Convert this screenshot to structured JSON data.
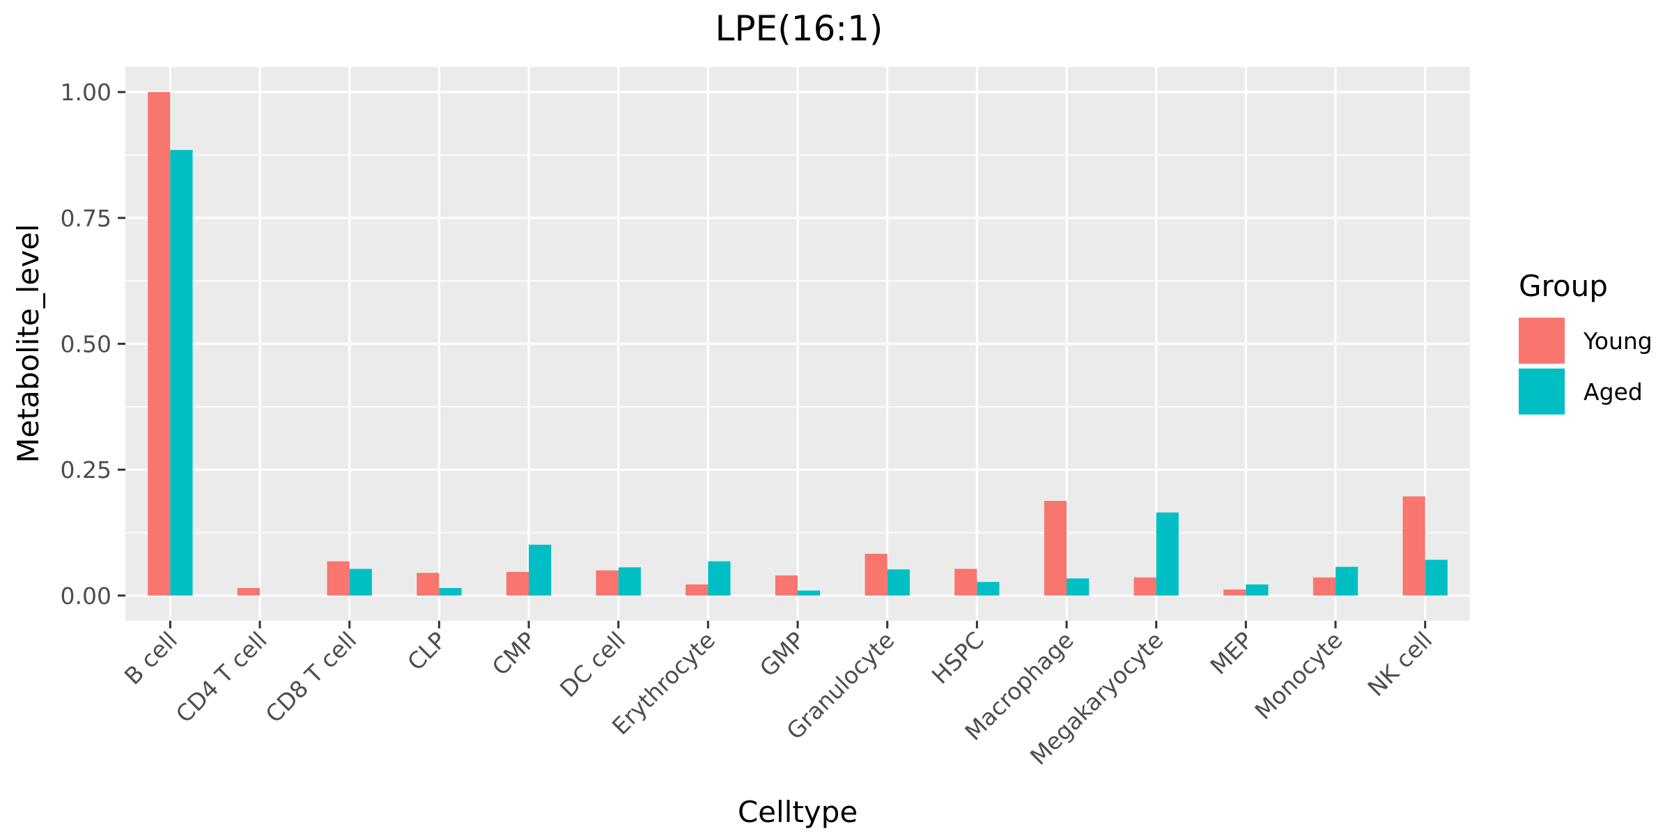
{
  "chart_data": {
    "type": "bar",
    "title": "LPE(16:1)",
    "xlabel": "Celltype",
    "ylabel": "Metabolite_level",
    "ylim": [
      -0.05,
      1.05
    ],
    "yticks": [
      0,
      0.25,
      0.5,
      0.75,
      1.0
    ],
    "ytick_labels": [
      "0.00",
      "0.25",
      "0.50",
      "0.75",
      "1.00"
    ],
    "grid": true,
    "legend": {
      "title": "Group",
      "position": "right"
    },
    "categories": [
      "B cell",
      "CD4 T cell",
      "CD8 T cell",
      "CLP",
      "CMP",
      "DC cell",
      "Erythrocyte",
      "GMP",
      "Granulocyte",
      "HSPC",
      "Macrophage",
      "Megakaryocyte",
      "MEP",
      "Monocyte",
      "NK cell"
    ],
    "series": [
      {
        "name": "Young",
        "color": "#F8766D",
        "values": [
          1.0,
          0.015,
          0.068,
          0.045,
          0.047,
          0.05,
          0.022,
          0.04,
          0.083,
          0.053,
          0.188,
          0.036,
          0.012,
          0.036,
          0.197
        ]
      },
      {
        "name": "Aged",
        "color": "#00BFC4",
        "values": [
          0.885,
          null,
          0.053,
          0.015,
          0.101,
          0.056,
          0.068,
          0.01,
          0.052,
          0.027,
          0.034,
          0.165,
          0.022,
          0.057,
          0.071
        ]
      }
    ]
  }
}
